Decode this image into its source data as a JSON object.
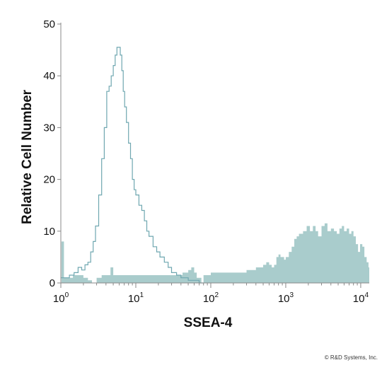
{
  "chart_data": {
    "type": "area",
    "xlabel": "SSEA-4",
    "ylabel": "Relative Cell Number",
    "xscale": "log",
    "xlim": [
      1,
      13000
    ],
    "ylim": [
      0,
      50
    ],
    "yticks": [
      0,
      10,
      20,
      30,
      40,
      50
    ],
    "xticks": [
      {
        "value": 1,
        "base": "10",
        "exp": "0"
      },
      {
        "value": 10,
        "base": "10",
        "exp": "1"
      },
      {
        "value": 100,
        "base": "10",
        "exp": "2"
      },
      {
        "value": 1000,
        "base": "10",
        "exp": "3"
      },
      {
        "value": 10000,
        "base": "10",
        "exp": "4"
      }
    ],
    "colors": {
      "fill": "#a9cccc",
      "line": "#6fa7b0",
      "axis": "#888888"
    },
    "series": [
      {
        "style": "outline",
        "x": [
          1,
          1.1,
          1.3,
          1.5,
          1.7,
          1.9,
          2.1,
          2.3,
          2.5,
          2.7,
          2.9,
          3.2,
          3.5,
          3.8,
          4.1,
          4.4,
          4.7,
          5.0,
          5.3,
          5.6,
          5.9,
          6.2,
          6.5,
          6.8,
          7.1,
          7.5,
          8.0,
          8.5,
          9.0,
          9.5,
          10,
          11,
          12,
          13,
          14,
          15,
          17,
          19,
          21,
          24,
          27,
          30,
          35,
          40,
          45,
          50,
          60,
          70,
          80
        ],
        "y": [
          1,
          1,
          1.5,
          2,
          3,
          2.5,
          3.5,
          4,
          6,
          8,
          11,
          17,
          24,
          30,
          37,
          38,
          40,
          42,
          44,
          45.5,
          45.5,
          44,
          41,
          37,
          34,
          31,
          27,
          24,
          20,
          18,
          17,
          15,
          14,
          12,
          10,
          9,
          7,
          6,
          5,
          4,
          3,
          2,
          1.5,
          1,
          1,
          0.5,
          0.5,
          0,
          0
        ]
      },
      {
        "style": "filled",
        "x": [
          1,
          1.02,
          1.1,
          1.25,
          1.45,
          1.7,
          2.0,
          2.3,
          2.6,
          3.0,
          3.5,
          3.8,
          4.2,
          4.6,
          5.0,
          6.0,
          8.0,
          10,
          13,
          17,
          22,
          28,
          35,
          42,
          50,
          55,
          60,
          65,
          70,
          75,
          80,
          90,
          100,
          130,
          160,
          200,
          250,
          300,
          350,
          400,
          450,
          500,
          550,
          600,
          650,
          700,
          750,
          800,
          850,
          900,
          950,
          1000,
          1100,
          1200,
          1300,
          1400,
          1500,
          1700,
          1900,
          2100,
          2300,
          2500,
          2700,
          3000,
          3300,
          3600,
          4000,
          4400,
          4800,
          5200,
          5600,
          6000,
          6500,
          7000,
          7500,
          8000,
          8600,
          9200,
          9800,
          10500,
          11200,
          12000,
          12700,
          13000
        ],
        "y": [
          0,
          8,
          1,
          1,
          1.5,
          1.5,
          1,
          0.5,
          0,
          1,
          1.5,
          1.5,
          1.5,
          3,
          1.5,
          1.5,
          1.5,
          1.5,
          1.5,
          1.5,
          1.5,
          1.5,
          1.5,
          2,
          2.5,
          3,
          2,
          1,
          1,
          0,
          1.5,
          1.5,
          2,
          2,
          2,
          2,
          2,
          2.5,
          2.5,
          3,
          3,
          3.5,
          4,
          3.5,
          3,
          3.5,
          5,
          5.5,
          5,
          5,
          4.5,
          5,
          6,
          7,
          8.5,
          9,
          9.5,
          10,
          11,
          10,
          11,
          10,
          9,
          11,
          11.5,
          10,
          10.5,
          10,
          9.5,
          10.5,
          11,
          10,
          10.5,
          9.5,
          10,
          9,
          7.5,
          6,
          7.5,
          7,
          5,
          4,
          3,
          0
        ]
      }
    ]
  },
  "footer": {
    "copyright": "© R&D Systems, Inc."
  }
}
